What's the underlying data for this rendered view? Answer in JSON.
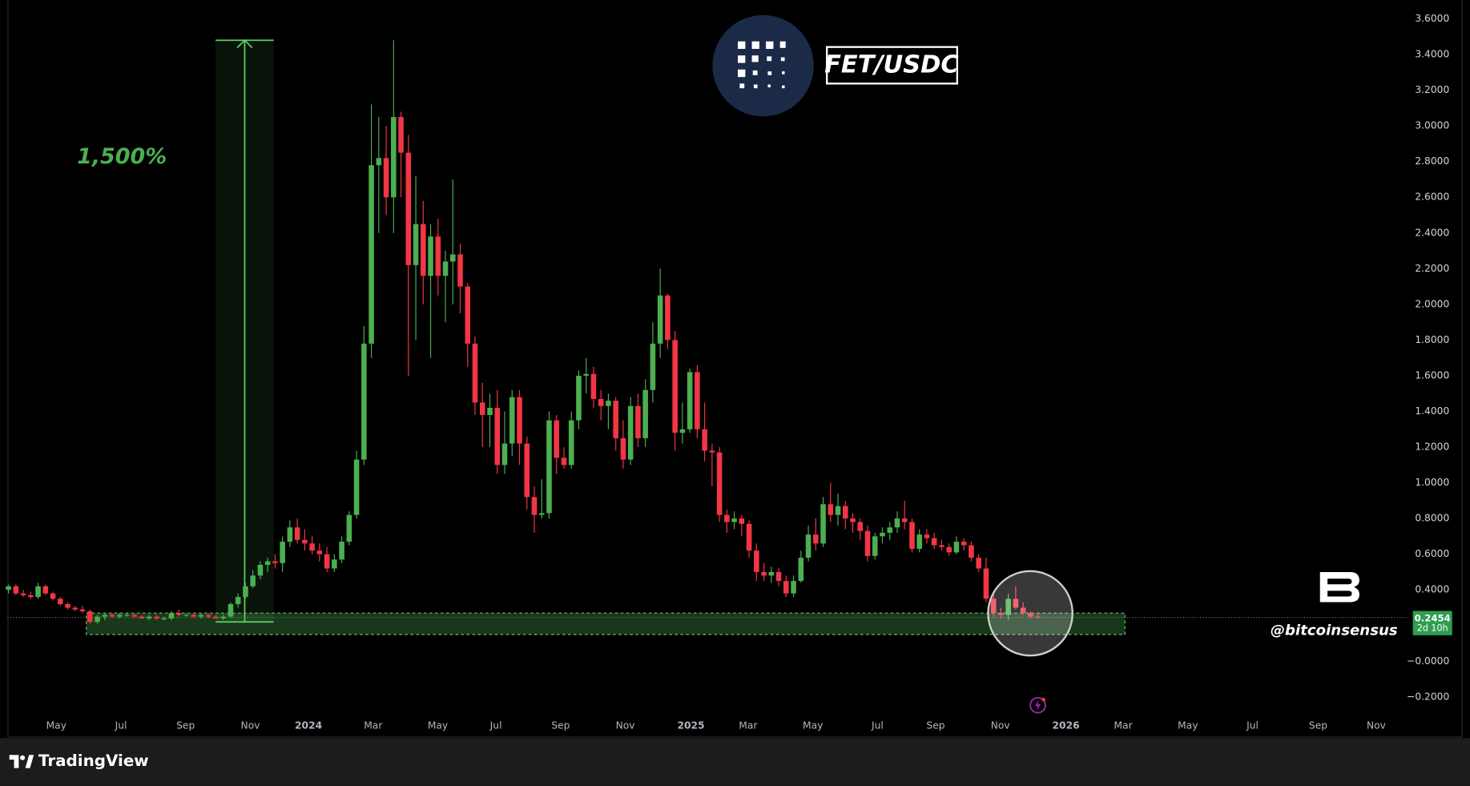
{
  "chart_data": {
    "type": "candlestick",
    "title": "FET/USDC",
    "up_color": "#4caf50",
    "down_color": "#f23645",
    "candles": [
      [
        0.4,
        0.43,
        0.38,
        0.42
      ],
      [
        0.42,
        0.43,
        0.37,
        0.38
      ],
      [
        0.38,
        0.4,
        0.36,
        0.37
      ],
      [
        0.37,
        0.39,
        0.35,
        0.36
      ],
      [
        0.36,
        0.44,
        0.35,
        0.42
      ],
      [
        0.42,
        0.43,
        0.37,
        0.38
      ],
      [
        0.38,
        0.39,
        0.34,
        0.35
      ],
      [
        0.35,
        0.36,
        0.31,
        0.32
      ],
      [
        0.32,
        0.33,
        0.29,
        0.3
      ],
      [
        0.3,
        0.31,
        0.28,
        0.29
      ],
      [
        0.29,
        0.31,
        0.27,
        0.28
      ],
      [
        0.28,
        0.29,
        0.21,
        0.22
      ],
      [
        0.22,
        0.26,
        0.21,
        0.25
      ],
      [
        0.25,
        0.27,
        0.23,
        0.26
      ],
      [
        0.26,
        0.27,
        0.24,
        0.25
      ],
      [
        0.25,
        0.27,
        0.24,
        0.26
      ],
      [
        0.26,
        0.27,
        0.25,
        0.26
      ],
      [
        0.26,
        0.27,
        0.24,
        0.25
      ],
      [
        0.25,
        0.26,
        0.24,
        0.24
      ],
      [
        0.24,
        0.26,
        0.23,
        0.25
      ],
      [
        0.25,
        0.26,
        0.23,
        0.24
      ],
      [
        0.24,
        0.25,
        0.23,
        0.24
      ],
      [
        0.24,
        0.28,
        0.23,
        0.27
      ],
      [
        0.27,
        0.29,
        0.25,
        0.26
      ],
      [
        0.26,
        0.27,
        0.25,
        0.26
      ],
      [
        0.26,
        0.27,
        0.24,
        0.25
      ],
      [
        0.25,
        0.27,
        0.24,
        0.26
      ],
      [
        0.26,
        0.27,
        0.24,
        0.25
      ],
      [
        0.25,
        0.26,
        0.24,
        0.24
      ],
      [
        0.24,
        0.26,
        0.23,
        0.25
      ],
      [
        0.25,
        0.33,
        0.24,
        0.32
      ],
      [
        0.32,
        0.38,
        0.3,
        0.36
      ],
      [
        0.36,
        0.44,
        0.35,
        0.42
      ],
      [
        0.42,
        0.51,
        0.41,
        0.48
      ],
      [
        0.48,
        0.56,
        0.46,
        0.54
      ],
      [
        0.54,
        0.58,
        0.5,
        0.56
      ],
      [
        0.56,
        0.6,
        0.52,
        0.55
      ],
      [
        0.55,
        0.7,
        0.5,
        0.67
      ],
      [
        0.67,
        0.79,
        0.64,
        0.75
      ],
      [
        0.75,
        0.8,
        0.66,
        0.68
      ],
      [
        0.68,
        0.74,
        0.62,
        0.66
      ],
      [
        0.66,
        0.7,
        0.6,
        0.62
      ],
      [
        0.62,
        0.66,
        0.56,
        0.6
      ],
      [
        0.6,
        0.64,
        0.5,
        0.52
      ],
      [
        0.52,
        0.6,
        0.5,
        0.57
      ],
      [
        0.57,
        0.7,
        0.55,
        0.67
      ],
      [
        0.67,
        0.84,
        0.65,
        0.82
      ],
      [
        0.82,
        1.18,
        0.8,
        1.13
      ],
      [
        1.13,
        1.88,
        1.1,
        1.78
      ],
      [
        1.78,
        3.12,
        1.7,
        2.78
      ],
      [
        2.78,
        3.05,
        2.4,
        2.82
      ],
      [
        2.82,
        3.0,
        2.5,
        2.6
      ],
      [
        2.6,
        3.48,
        2.4,
        3.05
      ],
      [
        3.05,
        3.08,
        2.6,
        2.85
      ],
      [
        2.85,
        2.95,
        1.6,
        2.22
      ],
      [
        2.22,
        2.72,
        1.8,
        2.45
      ],
      [
        2.45,
        2.58,
        2.0,
        2.16
      ],
      [
        2.16,
        2.45,
        1.7,
        2.38
      ],
      [
        2.38,
        2.48,
        2.05,
        2.16
      ],
      [
        2.16,
        2.3,
        1.9,
        2.24
      ],
      [
        2.24,
        2.7,
        2.0,
        2.28
      ],
      [
        2.28,
        2.34,
        1.95,
        2.1
      ],
      [
        2.1,
        2.12,
        1.65,
        1.78
      ],
      [
        1.78,
        1.82,
        1.38,
        1.45
      ],
      [
        1.45,
        1.56,
        1.2,
        1.38
      ],
      [
        1.38,
        1.5,
        1.2,
        1.42
      ],
      [
        1.42,
        1.52,
        1.05,
        1.1
      ],
      [
        1.1,
        1.4,
        1.05,
        1.22
      ],
      [
        1.22,
        1.52,
        1.15,
        1.48
      ],
      [
        1.48,
        1.52,
        1.1,
        1.22
      ],
      [
        1.22,
        1.26,
        0.85,
        0.92
      ],
      [
        0.92,
        0.98,
        0.72,
        0.82
      ],
      [
        0.82,
        1.02,
        0.8,
        0.83
      ],
      [
        0.83,
        1.4,
        0.8,
        1.35
      ],
      [
        1.35,
        1.38,
        1.05,
        1.14
      ],
      [
        1.14,
        1.2,
        1.08,
        1.1
      ],
      [
        1.1,
        1.4,
        1.08,
        1.35
      ],
      [
        1.35,
        1.63,
        1.3,
        1.6
      ],
      [
        1.6,
        1.7,
        1.5,
        1.61
      ],
      [
        1.61,
        1.65,
        1.42,
        1.47
      ],
      [
        1.47,
        1.52,
        1.35,
        1.43
      ],
      [
        1.43,
        1.5,
        1.3,
        1.46
      ],
      [
        1.46,
        1.48,
        1.18,
        1.25
      ],
      [
        1.25,
        1.35,
        1.08,
        1.13
      ],
      [
        1.13,
        1.48,
        1.1,
        1.43
      ],
      [
        1.43,
        1.5,
        1.2,
        1.25
      ],
      [
        1.25,
        1.58,
        1.2,
        1.52
      ],
      [
        1.52,
        1.9,
        1.45,
        1.78
      ],
      [
        1.78,
        2.2,
        1.7,
        2.05
      ],
      [
        2.05,
        2.06,
        1.75,
        1.8
      ],
      [
        1.8,
        1.85,
        1.18,
        1.28
      ],
      [
        1.28,
        1.45,
        1.22,
        1.3
      ],
      [
        1.3,
        1.64,
        1.28,
        1.62
      ],
      [
        1.62,
        1.66,
        1.25,
        1.3
      ],
      [
        1.3,
        1.45,
        1.12,
        1.18
      ],
      [
        1.18,
        1.22,
        0.98,
        1.17
      ],
      [
        1.17,
        1.2,
        0.78,
        0.82
      ],
      [
        0.82,
        0.85,
        0.72,
        0.78
      ],
      [
        0.78,
        0.84,
        0.74,
        0.8
      ],
      [
        0.8,
        0.82,
        0.7,
        0.77
      ],
      [
        0.77,
        0.79,
        0.58,
        0.62
      ],
      [
        0.62,
        0.66,
        0.45,
        0.5
      ],
      [
        0.5,
        0.55,
        0.45,
        0.48
      ],
      [
        0.48,
        0.53,
        0.44,
        0.5
      ],
      [
        0.5,
        0.52,
        0.42,
        0.45
      ],
      [
        0.45,
        0.48,
        0.36,
        0.38
      ],
      [
        0.38,
        0.48,
        0.36,
        0.45
      ],
      [
        0.45,
        0.62,
        0.44,
        0.58
      ],
      [
        0.58,
        0.76,
        0.56,
        0.71
      ],
      [
        0.71,
        0.8,
        0.62,
        0.66
      ],
      [
        0.66,
        0.92,
        0.64,
        0.88
      ],
      [
        0.88,
        1.0,
        0.78,
        0.82
      ],
      [
        0.82,
        0.94,
        0.76,
        0.87
      ],
      [
        0.87,
        0.9,
        0.74,
        0.8
      ],
      [
        0.8,
        0.83,
        0.72,
        0.78
      ],
      [
        0.78,
        0.8,
        0.68,
        0.73
      ],
      [
        0.73,
        0.76,
        0.56,
        0.59
      ],
      [
        0.59,
        0.72,
        0.57,
        0.7
      ],
      [
        0.7,
        0.75,
        0.66,
        0.72
      ],
      [
        0.72,
        0.78,
        0.68,
        0.75
      ],
      [
        0.75,
        0.84,
        0.72,
        0.8
      ],
      [
        0.8,
        0.9,
        0.74,
        0.78
      ],
      [
        0.78,
        0.8,
        0.61,
        0.63
      ],
      [
        0.63,
        0.74,
        0.61,
        0.71
      ],
      [
        0.71,
        0.74,
        0.66,
        0.69
      ],
      [
        0.69,
        0.72,
        0.63,
        0.65
      ],
      [
        0.65,
        0.68,
        0.62,
        0.64
      ],
      [
        0.64,
        0.66,
        0.59,
        0.61
      ],
      [
        0.61,
        0.7,
        0.6,
        0.67
      ],
      [
        0.67,
        0.69,
        0.62,
        0.65
      ],
      [
        0.65,
        0.67,
        0.56,
        0.58
      ],
      [
        0.58,
        0.6,
        0.5,
        0.52
      ],
      [
        0.52,
        0.58,
        0.33,
        0.35
      ],
      [
        0.35,
        0.38,
        0.25,
        0.27
      ],
      [
        0.27,
        0.3,
        0.24,
        0.26
      ],
      [
        0.26,
        0.38,
        0.23,
        0.35
      ],
      [
        0.35,
        0.42,
        0.29,
        0.3
      ],
      [
        0.3,
        0.33,
        0.26,
        0.27
      ],
      [
        0.27,
        0.28,
        0.24,
        0.25
      ],
      [
        0.25,
        0.27,
        0.24,
        0.2454
      ]
    ],
    "xlim": [
      -0.13,
      188.73
    ],
    "xticks": [
      {
        "value": 6.46,
        "label": "May"
      },
      {
        "value": 15.19,
        "label": "Jul"
      },
      {
        "value": 23.92,
        "label": "Sep"
      },
      {
        "value": 32.66,
        "label": "Nov"
      },
      {
        "value": 40.51,
        "label": "2024"
      },
      {
        "value": 49.24,
        "label": "Mar"
      },
      {
        "value": 57.97,
        "label": "May"
      },
      {
        "value": 65.82,
        "label": "Jul"
      },
      {
        "value": 74.56,
        "label": "Sep"
      },
      {
        "value": 83.29,
        "label": "Nov"
      },
      {
        "value": 92.15,
        "label": "2025"
      },
      {
        "value": 99.87,
        "label": "Mar"
      },
      {
        "value": 108.61,
        "label": "May"
      },
      {
        "value": 117.34,
        "label": "Jul"
      },
      {
        "value": 125.19,
        "label": "Sep"
      },
      {
        "value": 133.92,
        "label": "Nov"
      },
      {
        "value": 142.78,
        "label": "2026"
      },
      {
        "value": 150.51,
        "label": "Mar"
      },
      {
        "value": 159.24,
        "label": "May"
      },
      {
        "value": 167.97,
        "label": "Jul"
      },
      {
        "value": 176.84,
        "label": "Sep"
      },
      {
        "value": 184.68,
        "label": "Nov"
      }
    ],
    "ylim": [
      -0.42,
      3.705
    ],
    "yticks": [
      {
        "value": 3.6,
        "label": "3.6000"
      },
      {
        "value": 3.4,
        "label": "3.4000"
      },
      {
        "value": 3.2,
        "label": "3.2000"
      },
      {
        "value": 3.0,
        "label": "3.0000"
      },
      {
        "value": 2.8,
        "label": "2.8000"
      },
      {
        "value": 2.6,
        "label": "2.6000"
      },
      {
        "value": 2.4,
        "label": "2.4000"
      },
      {
        "value": 2.2,
        "label": "2.2000"
      },
      {
        "value": 2.0,
        "label": "2.0000"
      },
      {
        "value": 1.8,
        "label": "1.8000"
      },
      {
        "value": 1.6,
        "label": "1.6000"
      },
      {
        "value": 1.4,
        "label": "1.4000"
      },
      {
        "value": 1.2,
        "label": "1.2000"
      },
      {
        "value": 1.0,
        "label": "1.0000"
      },
      {
        "value": 0.8,
        "label": "0.8000"
      },
      {
        "value": 0.6,
        "label": "0.6000"
      },
      {
        "value": 0.4,
        "label": "0.4000"
      },
      {
        "value": 0,
        "label": "−0.0000"
      },
      {
        "value": -0.2,
        "label": "−0.2000"
      }
    ],
    "grid": false,
    "last_price": 0.2454,
    "countdown": "2d 10h",
    "measure": {
      "label": "1,500%",
      "from": 0.22,
      "to": 3.48
    },
    "support_zone": [
      0.15,
      0.27
    ],
    "watermark": "@bitcoinsensus",
    "brand": "TradingView"
  }
}
